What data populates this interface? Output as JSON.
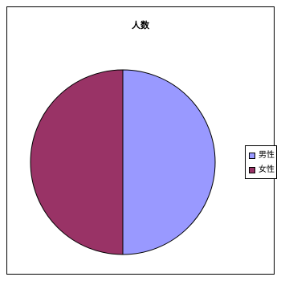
{
  "chart_data": {
    "type": "pie",
    "title": "人数",
    "slices": [
      {
        "label": "男性",
        "value": 50,
        "color": "#9999FF"
      },
      {
        "label": "女性",
        "value": 50,
        "color": "#993366"
      }
    ],
    "start": "top",
    "direction": "clockwise",
    "legend_position": "right"
  }
}
